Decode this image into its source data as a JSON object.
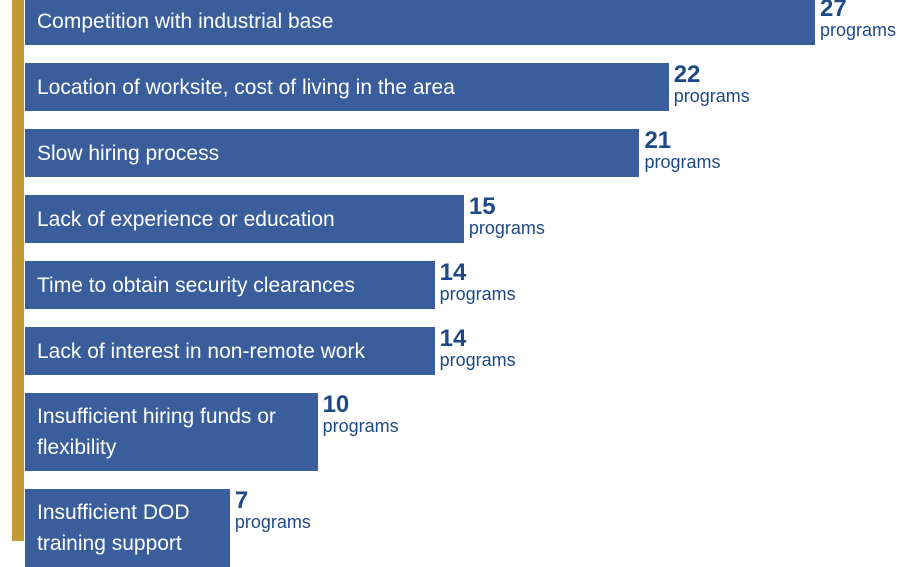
{
  "chart_data": {
    "type": "bar",
    "orientation": "horizontal",
    "categories": [
      "Competition with industrial base",
      "Location of worksite, cost of living in the area",
      "Slow hiring process",
      "Lack of experience or education",
      "Time to obtain security clearances",
      "Lack of interest in non-remote work",
      "Insufficient hiring funds or flexibility",
      "Insufficient DOD training support"
    ],
    "values": [
      27,
      22,
      21,
      15,
      14,
      14,
      10,
      7
    ],
    "unit": "programs",
    "color": "#3a5e9c",
    "label_color": "#1d4a86",
    "accent_color": "#c49a34"
  }
}
